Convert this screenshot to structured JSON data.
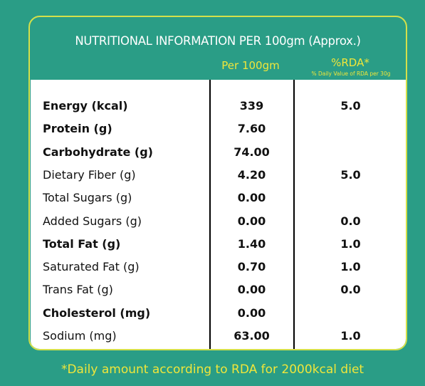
{
  "header": {
    "title": "NUTRITIONAL INFORMATION PER 100gm (Approx.)",
    "col_per_100": "Per 100gm",
    "col_rda": "%RDA*",
    "col_rda_note": "% Daily Value of RDA per 30g"
  },
  "rows": [
    {
      "label": "Energy (kcal)",
      "value": "339",
      "rda": "5.0",
      "bold": true
    },
    {
      "label": "Protein (g)",
      "value": "7.60",
      "rda": "",
      "bold": true
    },
    {
      "label": "Carbohydrate (g)",
      "value": "74.00",
      "rda": "",
      "bold": true
    },
    {
      "label": "Dietary Fiber (g)",
      "value": "4.20",
      "rda": "5.0",
      "bold": false
    },
    {
      "label": "Total Sugars (g)",
      "value": "0.00",
      "rda": "",
      "bold": false
    },
    {
      "label": "Added Sugars (g)",
      "value": "0.00",
      "rda": "0.0",
      "bold": false
    },
    {
      "label": "Total Fat (g)",
      "value": "1.40",
      "rda": "1.0",
      "bold": true
    },
    {
      "label": "Saturated Fat (g)",
      "value": "0.70",
      "rda": "1.0",
      "bold": false
    },
    {
      "label": "Trans Fat (g)",
      "value": "0.00",
      "rda": "0.0",
      "bold": false
    },
    {
      "label": "Cholesterol (mg)",
      "value": "0.00",
      "rda": "",
      "bold": true
    },
    {
      "label": "Sodium (mg)",
      "value": "63.00",
      "rda": "1.0",
      "bold": false
    }
  ],
  "footer": "*Daily amount according to RDA for 2000kcal diet",
  "colors": {
    "background": "#2a9d86",
    "accent": "#f0e63a",
    "border": "#d4e04a"
  }
}
